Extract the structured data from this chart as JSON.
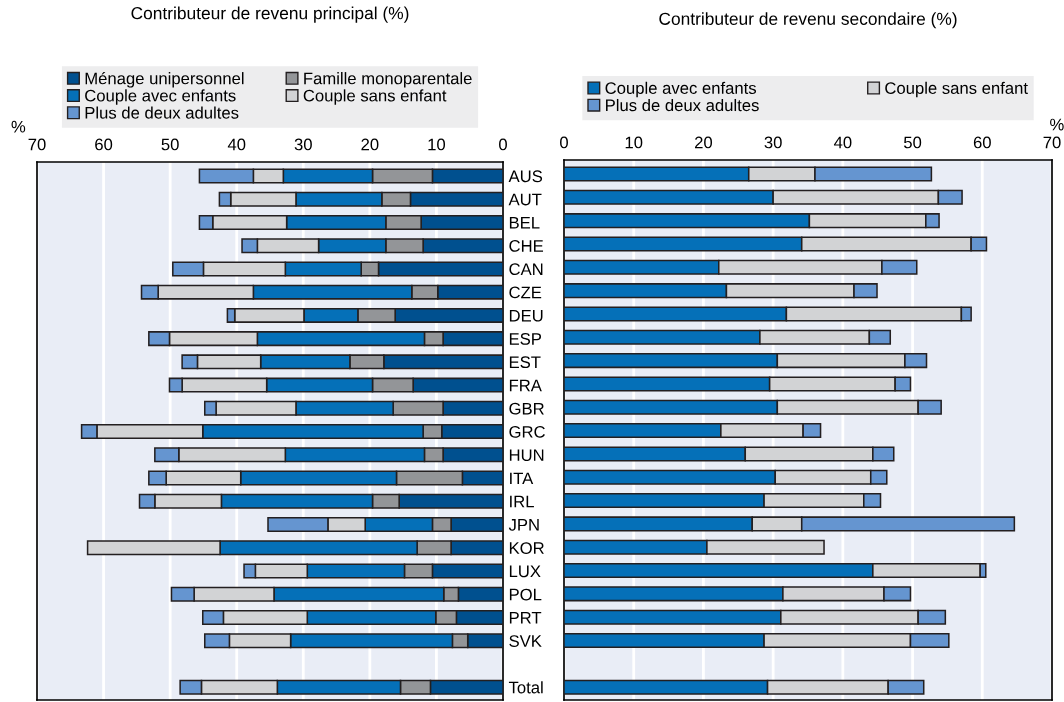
{
  "chart_data": [
    {
      "type": "bar",
      "orientation": "horizontal",
      "stacked": true,
      "title": "Contributeur de revenu principal (%)",
      "xlabel": "%",
      "categories": [
        "AUS",
        "AUT",
        "BEL",
        "CHE",
        "CAN",
        "CZE",
        "DEU",
        "ESP",
        "EST",
        "FRA",
        "GBR",
        "GRC",
        "HUN",
        "ITA",
        "IRL",
        "JPN",
        "KOR",
        "LUX",
        "POL",
        "PRT",
        "SVK",
        null,
        "Total"
      ],
      "series": [
        {
          "name": "Ménage unipersonnel",
          "color": "#00508f",
          "values": [
            10.6,
            13.9,
            12.3,
            12.0,
            18.7,
            9.8,
            16.2,
            9.0,
            17.9,
            13.5,
            9.0,
            9.2,
            9.0,
            6.1,
            15.6,
            7.8,
            7.8,
            10.6,
            6.7,
            7.0,
            5.3,
            null,
            10.9
          ]
        },
        {
          "name": "Famille monoparentale",
          "color": "#939598",
          "values": [
            9.0,
            4.3,
            5.3,
            5.6,
            2.6,
            3.9,
            5.6,
            2.8,
            5.1,
            6.1,
            7.5,
            2.8,
            2.8,
            9.9,
            4.0,
            2.8,
            5.1,
            4.2,
            2.2,
            3.1,
            2.3,
            null,
            4.5
          ]
        },
        {
          "name": "Couple avec enfants",
          "color": "#0570b8",
          "values": [
            13.4,
            12.9,
            14.9,
            10.1,
            11.4,
            23.8,
            8.1,
            25.1,
            13.4,
            15.9,
            14.6,
            33.1,
            20.9,
            23.4,
            22.7,
            10.1,
            29.6,
            14.6,
            25.5,
            19.3,
            24.3,
            null,
            18.5
          ]
        },
        {
          "name": "Couple sans enfant",
          "color": "#d2d3d5",
          "values": [
            4.5,
            9.8,
            11.1,
            9.2,
            12.3,
            14.3,
            10.4,
            13.2,
            9.5,
            12.7,
            12.0,
            15.9,
            16.0,
            11.2,
            10.0,
            5.6,
            19.9,
            7.8,
            12.0,
            12.6,
            9.2,
            null,
            11.4
          ]
        },
        {
          "name": "Plus de deux adultes",
          "color": "#6595d0",
          "values": [
            8.1,
            1.7,
            2.0,
            2.3,
            4.6,
            2.5,
            1.1,
            3.1,
            2.3,
            1.9,
            1.7,
            2.3,
            3.6,
            2.6,
            2.3,
            9.0,
            null,
            1.7,
            3.4,
            3.1,
            3.7,
            null,
            3.2
          ]
        }
      ],
      "xlim": [
        70,
        0
      ],
      "xticks": [
        70,
        60,
        50,
        40,
        30,
        20,
        10,
        0
      ],
      "grid": "x",
      "legend": "top"
    },
    {
      "type": "bar",
      "orientation": "horizontal",
      "stacked": true,
      "title": "Contributeur de revenu secondaire (%)",
      "xlabel": "%",
      "categories": [
        null,
        null,
        null,
        null,
        null,
        null,
        null,
        null,
        null,
        null,
        null,
        null,
        null,
        null,
        null,
        null,
        null,
        null,
        null,
        null,
        null,
        null,
        null
      ],
      "series": [
        {
          "name": "Couple avec enfants",
          "color": "#0570b8",
          "values": [
            26.5,
            30.0,
            35.2,
            34.1,
            22.2,
            23.3,
            31.9,
            28.1,
            30.6,
            29.5,
            30.6,
            22.5,
            26.0,
            30.3,
            28.7,
            27.0,
            20.5,
            44.3,
            31.4,
            31.1,
            28.7,
            null,
            29.2
          ]
        },
        {
          "name": "Couple sans enfant",
          "color": "#d2d3d5",
          "values": [
            9.5,
            23.7,
            16.7,
            24.3,
            23.4,
            18.3,
            25.1,
            15.7,
            18.3,
            18.0,
            20.2,
            11.8,
            18.3,
            13.7,
            14.3,
            7.1,
            16.8,
            15.4,
            14.5,
            19.7,
            21.0,
            null,
            17.3
          ]
        },
        {
          "name": "Plus de deux adultes",
          "color": "#6595d0",
          "values": [
            16.7,
            3.4,
            1.9,
            2.2,
            5.0,
            3.3,
            1.4,
            3.0,
            3.1,
            2.2,
            3.3,
            2.5,
            3.0,
            2.3,
            2.4,
            30.5,
            null,
            0.8,
            3.8,
            3.9,
            5.5,
            null,
            5.1
          ]
        }
      ],
      "xlim": [
        0,
        70
      ],
      "xticks": [
        0,
        10,
        20,
        30,
        40,
        50,
        60,
        70
      ],
      "grid": "x",
      "legend": "top"
    }
  ]
}
